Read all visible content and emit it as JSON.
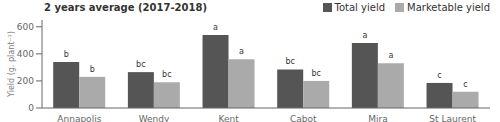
{
  "chart_data": {
    "type": "bar",
    "title": "2 years average (2017-2018)",
    "ylabel": "Yield (g. plant⁻¹)",
    "categories": [
      "Annapolis",
      "Wendy",
      "Kent",
      "Cabot",
      "Mira",
      "St Laurent"
    ],
    "series": [
      {
        "name": "Total yield",
        "color": "#555555",
        "values": [
          340,
          265,
          540,
          285,
          480,
          185
        ],
        "annotations": [
          "b",
          "bc",
          "a",
          "bc",
          "a",
          "c"
        ]
      },
      {
        "name": "Marketable yield",
        "color": "#aaaaaa",
        "values": [
          230,
          190,
          360,
          200,
          330,
          120
        ],
        "annotations": [
          "b",
          "bc",
          "a",
          "bc",
          "a",
          "c"
        ]
      }
    ],
    "ylim": [
      0,
      650
    ],
    "yticks": [
      0,
      200,
      400,
      600
    ],
    "grid": false,
    "legend": "top right"
  }
}
